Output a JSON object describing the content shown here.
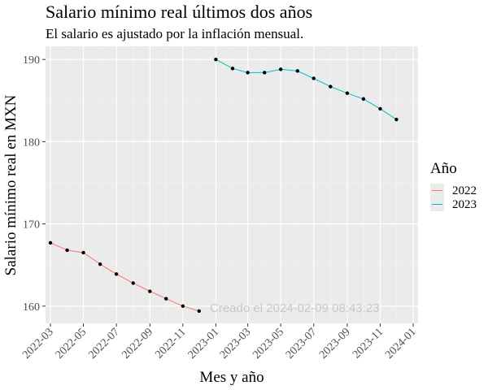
{
  "chart_data": {
    "type": "line",
    "title": "Salario mínimo real últimos dos años",
    "subtitle": "El salario es ajustado por la inflación mensual.",
    "xlabel": "Mes y año",
    "ylabel": "Salario mínimo real en MXN",
    "x_ticks": [
      "2022-03",
      "2022-05",
      "2022-07",
      "2022-09",
      "2022-11",
      "2023-01",
      "2023-03",
      "2023-05",
      "2023-07",
      "2023-09",
      "2023-11",
      "2024-01"
    ],
    "y_ticks": [
      160,
      170,
      180,
      190
    ],
    "xlim": [
      "2022-02-20",
      "2024-01-10"
    ],
    "ylim": [
      157.9,
      191.6
    ],
    "grid": true,
    "legend": {
      "title": "Año",
      "position": "right"
    },
    "annotation": "Creado el  2024-02-09 08:43:23",
    "series": [
      {
        "name": "2022",
        "color": "#F8766D",
        "points": [
          {
            "x": "2022-03-01",
            "y": 167.7
          },
          {
            "x": "2022-04-01",
            "y": 166.8
          },
          {
            "x": "2022-05-01",
            "y": 166.5
          },
          {
            "x": "2022-06-01",
            "y": 165.1
          },
          {
            "x": "2022-07-01",
            "y": 163.9
          },
          {
            "x": "2022-08-01",
            "y": 162.8
          },
          {
            "x": "2022-09-01",
            "y": 161.8
          },
          {
            "x": "2022-10-01",
            "y": 160.9
          },
          {
            "x": "2022-11-01",
            "y": 160.0
          },
          {
            "x": "2022-12-01",
            "y": 159.4
          }
        ]
      },
      {
        "name": "2023",
        "color": "#00BFC4",
        "points": [
          {
            "x": "2023-01-01",
            "y": 190.0
          },
          {
            "x": "2023-02-01",
            "y": 188.9
          },
          {
            "x": "2023-03-01",
            "y": 188.4
          },
          {
            "x": "2023-04-01",
            "y": 188.4
          },
          {
            "x": "2023-05-01",
            "y": 188.8
          },
          {
            "x": "2023-06-01",
            "y": 188.6
          },
          {
            "x": "2023-07-01",
            "y": 187.7
          },
          {
            "x": "2023-08-01",
            "y": 186.7
          },
          {
            "x": "2023-09-01",
            "y": 185.9
          },
          {
            "x": "2023-10-01",
            "y": 185.2
          },
          {
            "x": "2023-11-01",
            "y": 184.0
          },
          {
            "x": "2023-12-01",
            "y": 182.7
          }
        ]
      }
    ]
  }
}
